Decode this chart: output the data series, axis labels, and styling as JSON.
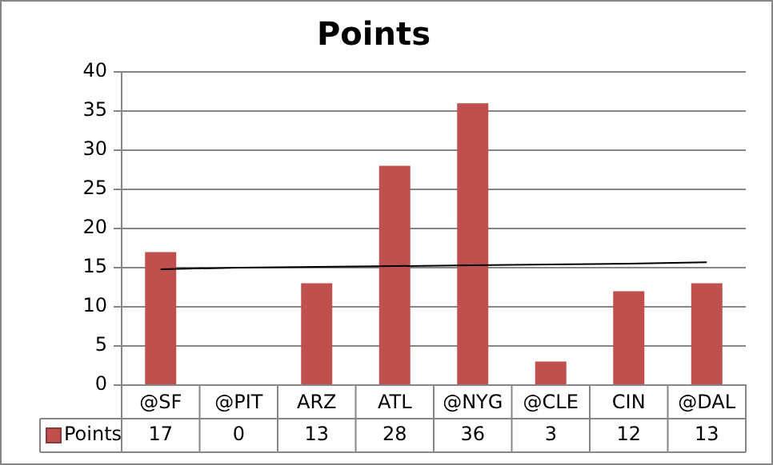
{
  "chart_data": {
    "type": "bar",
    "title": "Points",
    "categories": [
      "@SF",
      "@PIT",
      "ARZ",
      "ATL",
      "@NYG",
      "@CLE",
      "CIN",
      "@DAL"
    ],
    "series": [
      {
        "name": "Points",
        "color": "#c0504d",
        "values": [
          17,
          0,
          13,
          28,
          36,
          3,
          12,
          13
        ],
        "value_labels": [
          "17",
          "0",
          "13",
          "28",
          "36",
          "3",
          "12",
          "13"
        ]
      },
      {
        "type": "line",
        "color": "#000000",
        "values": [
          14.8,
          15.0,
          15.1,
          15.2,
          15.3,
          15.4,
          15.5,
          15.7
        ]
      }
    ],
    "ylim": [
      0,
      40
    ],
    "yticks": [
      0,
      5,
      10,
      15,
      20,
      25,
      30,
      35,
      40
    ],
    "grid": "y",
    "legend": "bottom",
    "marker": "none",
    "line_style": "solid"
  }
}
